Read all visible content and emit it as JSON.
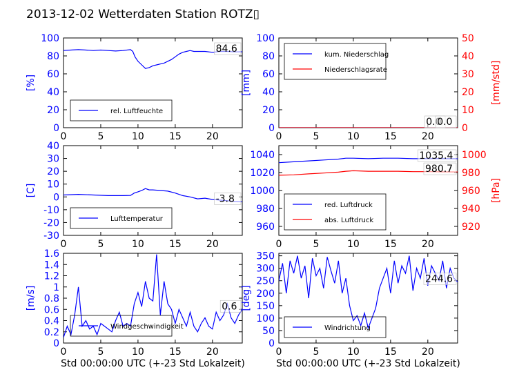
{
  "title": "2013-12-02 Wetterdaten Station ROTZ▯",
  "colors": {
    "primary": "#0000ff",
    "secondary": "#ff0000"
  },
  "chart_data": [
    {
      "type": "line",
      "x": [
        0,
        1,
        2,
        3,
        4,
        5,
        6,
        7,
        8,
        9,
        9.3,
        9.6,
        10,
        10.5,
        11,
        11.5,
        12,
        12.5,
        13,
        13.5,
        14,
        14.5,
        15,
        15.5,
        16,
        16.5,
        17,
        17.5,
        18,
        19,
        20,
        21,
        22,
        23,
        24
      ],
      "series": [
        {
          "name": "rel. Luftfeuchte",
          "color": "#0000ff",
          "values": [
            86,
            86.5,
            87,
            86.5,
            86,
            86.5,
            86,
            85.5,
            86,
            87,
            85,
            79,
            74,
            70,
            66,
            67,
            69,
            70,
            71,
            72,
            74,
            76,
            79,
            82,
            84,
            85,
            86,
            85,
            85,
            85,
            84,
            85,
            85,
            84.5,
            84.6
          ]
        }
      ],
      "ylabel": "[%]",
      "ylim": [
        0,
        100
      ],
      "yticks": [
        0,
        20,
        40,
        60,
        80,
        100
      ],
      "xlim": [
        0,
        24
      ],
      "xticks": [
        0,
        5,
        10,
        15,
        20
      ],
      "annotation": "84.6",
      "legend": "lower-center"
    },
    {
      "type": "line",
      "x": [
        0,
        24
      ],
      "series": [
        {
          "name": "kum. Niederschlag",
          "color": "#0000ff",
          "axis": "left",
          "values": [
            0,
            0
          ]
        },
        {
          "name": "Niederschlagsrate",
          "color": "#ff0000",
          "axis": "right",
          "values": [
            0,
            0
          ]
        }
      ],
      "ylabel": "[mm]",
      "ylim": [
        0,
        100
      ],
      "yticks": [
        0,
        20,
        40,
        60,
        80,
        100
      ],
      "y2label": "[mm/std]",
      "y2lim": [
        0,
        50
      ],
      "y2ticks": [
        0,
        10,
        20,
        30,
        40,
        50
      ],
      "xlim": [
        0,
        24
      ],
      "xticks": [
        0,
        5,
        10,
        15,
        20
      ],
      "annotations": [
        "0.0",
        "0.0"
      ],
      "legend": "upper-left"
    },
    {
      "type": "line",
      "x": [
        0,
        2,
        4,
        6,
        8,
        9,
        9.5,
        10,
        10.5,
        11,
        11.5,
        12,
        13,
        14,
        15,
        16,
        17,
        18,
        19,
        20,
        21,
        22,
        23,
        24
      ],
      "series": [
        {
          "name": "Lufttemperatur",
          "color": "#0000ff",
          "values": [
            1.5,
            2,
            1.5,
            1,
            1,
            1.2,
            3,
            4,
            5,
            6.5,
            5.5,
            5.5,
            5,
            4.5,
            3,
            1,
            0,
            -1.5,
            -1,
            -2,
            -2.5,
            -3,
            -3.5,
            -3.8
          ]
        }
      ],
      "ylabel": "[C]",
      "ylim": [
        -30,
        40
      ],
      "yticks": [
        -30,
        -20,
        -10,
        0,
        10,
        20,
        30,
        40
      ],
      "xlim": [
        0,
        24
      ],
      "xticks": [
        0,
        5,
        10,
        15,
        20
      ],
      "annotation": "-3.8",
      "legend": "lower-center"
    },
    {
      "type": "line",
      "x": [
        0,
        2,
        4,
        6,
        8,
        9,
        10,
        12,
        14,
        16,
        18,
        20,
        22,
        24
      ],
      "series": [
        {
          "name": "red. Luftdruck",
          "color": "#0000ff",
          "axis": "left",
          "values": [
            1031,
            1032,
            1033,
            1034,
            1035,
            1036,
            1036,
            1035.5,
            1036,
            1036,
            1035.5,
            1035.5,
            1035.5,
            1035.4
          ]
        },
        {
          "name": "abs. Luftdruck",
          "color": "#ff0000",
          "axis": "right",
          "values": [
            977,
            977.5,
            978.5,
            979.5,
            980.5,
            981.5,
            982,
            981.5,
            981.5,
            981.5,
            981,
            981,
            980.8,
            980.7
          ]
        }
      ],
      "ylabel": "",
      "ylim": [
        950,
        1050
      ],
      "yticks": [
        960,
        980,
        1000,
        1020,
        1040
      ],
      "y2label": "[hPa]",
      "y2lim": [
        910,
        1010
      ],
      "y2ticks": [
        920,
        940,
        960,
        980,
        1000
      ],
      "xlim": [
        0,
        24
      ],
      "xticks": [
        0,
        5,
        10,
        15,
        20
      ],
      "annotations": [
        "1035.4",
        "980.7"
      ],
      "legend": "lower-left"
    },
    {
      "type": "line",
      "x": [
        0,
        0.5,
        1,
        1.5,
        2,
        2.5,
        3,
        3.5,
        4,
        4.5,
        5,
        5.5,
        6,
        6.5,
        7,
        7.5,
        8,
        8.5,
        9,
        9.5,
        10,
        10.5,
        11,
        11.5,
        12,
        12.5,
        13,
        13.5,
        14,
        14.5,
        15,
        15.5,
        16,
        16.5,
        17,
        17.5,
        18,
        18.5,
        19,
        19.5,
        20,
        20.5,
        21,
        21.5,
        22,
        22.5,
        23,
        23.5,
        24
      ],
      "series": [
        {
          "name": "Windgeschwindigkeit",
          "color": "#0000ff",
          "values": [
            0.1,
            0.3,
            0.15,
            0.5,
            1.0,
            0.3,
            0.4,
            0.25,
            0.3,
            0.15,
            0.35,
            0.3,
            0.25,
            0.2,
            0.4,
            0.55,
            0.3,
            0.35,
            0.3,
            0.7,
            0.9,
            0.65,
            1.1,
            0.8,
            0.75,
            1.58,
            0.5,
            1.1,
            0.7,
            0.6,
            0.35,
            0.6,
            0.45,
            0.3,
            0.55,
            0.3,
            0.2,
            0.35,
            0.45,
            0.3,
            0.25,
            0.55,
            0.4,
            0.5,
            0.7,
            0.45,
            0.35,
            0.5,
            0.6
          ]
        }
      ],
      "ylabel": "[m/s]",
      "ylim": [
        0,
        1.6
      ],
      "yticks": [
        0.0,
        0.2,
        0.4,
        0.6,
        0.8,
        1.0,
        1.2,
        1.4,
        1.6
      ],
      "xlabel": "Std 00:00:00 UTC (+-23 Std Lokalzeit)",
      "xlim": [
        0,
        24
      ],
      "xticks": [
        0,
        5,
        10,
        15,
        20
      ],
      "annotation": "0.6",
      "legend": "lower-center"
    },
    {
      "type": "line",
      "x": [
        0,
        0.5,
        1,
        1.5,
        2,
        2.5,
        3,
        3.5,
        4,
        4.5,
        5,
        5.5,
        6,
        6.5,
        7,
        7.5,
        8,
        8.5,
        9,
        9.5,
        10,
        10.5,
        11,
        11.5,
        12,
        12.5,
        13,
        13.5,
        14,
        14.5,
        15,
        15.5,
        16,
        16.5,
        17,
        17.5,
        18,
        18.5,
        19,
        19.5,
        20,
        20.5,
        21,
        21.5,
        22,
        22.5,
        23,
        23.5,
        24
      ],
      "series": [
        {
          "name": "Windrichtung",
          "color": "#0000ff",
          "values": [
            250,
            320,
            200,
            330,
            280,
            350,
            260,
            310,
            180,
            340,
            270,
            300,
            220,
            345,
            290,
            240,
            330,
            200,
            260,
            150,
            90,
            110,
            70,
            120,
            60,
            100,
            140,
            220,
            260,
            300,
            200,
            330,
            240,
            310,
            280,
            350,
            210,
            300,
            260,
            340,
            230,
            310,
            280,
            250,
            330,
            220,
            300,
            260,
            245
          ]
        }
      ],
      "ylabel": "[deg]",
      "ylim": [
        0,
        360
      ],
      "yticks": [
        0,
        50,
        100,
        150,
        200,
        250,
        300,
        350
      ],
      "xlabel": "Std 00:00:00 UTC (+-23 Std Lokalzeit)",
      "xlim": [
        0,
        24
      ],
      "xticks": [
        0,
        5,
        10,
        15,
        20
      ],
      "annotation": "244.6",
      "legend": "lower-left"
    }
  ]
}
